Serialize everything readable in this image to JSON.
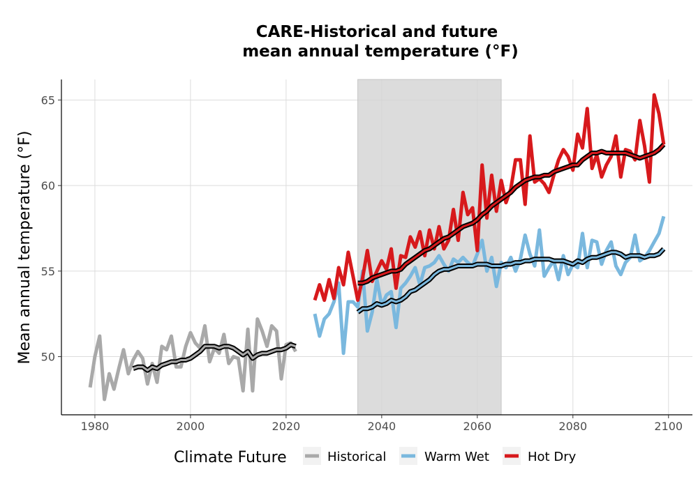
{
  "chart_data": {
    "type": "line",
    "title_line1": "CARE-Historical and future",
    "title_line2": "mean annual temperature (°F)",
    "xlabel": "",
    "ylabel": "Mean annual temperature (°F)",
    "xlim": [
      1973,
      2105
    ],
    "ylim": [
      46.6,
      66.2
    ],
    "x_ticks": [
      "1980",
      "2000",
      "2020",
      "2040",
      "2060",
      "2080",
      "2100"
    ],
    "y_ticks": [
      "50",
      "55",
      "60",
      "65"
    ],
    "grid": true,
    "shaded_period": [
      2035,
      2065
    ],
    "legend": {
      "title": "Climate Future",
      "position": "bottom",
      "entries": [
        {
          "label": "Historical",
          "color": "#a9a9a9"
        },
        {
          "label": "Warm Wet",
          "color": "#7ab8de"
        },
        {
          "label": "Hot Dry",
          "color": "#d7191c"
        }
      ]
    },
    "series": [
      {
        "name": "Historical",
        "color": "#a9a9a9",
        "x": [
          1979,
          1980,
          1981,
          1982,
          1983,
          1984,
          1985,
          1986,
          1987,
          1988,
          1989,
          1990,
          1991,
          1992,
          1993,
          1994,
          1995,
          1996,
          1997,
          1998,
          1999,
          2000,
          2001,
          2002,
          2003,
          2004,
          2005,
          2006,
          2007,
          2008,
          2009,
          2010,
          2011,
          2012,
          2013,
          2014,
          2015,
          2016,
          2017,
          2018,
          2019,
          2020,
          2021,
          2022
        ],
        "values": [
          48.2,
          50.0,
          51.2,
          47.5,
          49.0,
          48.1,
          49.3,
          50.4,
          49.0,
          49.8,
          50.3,
          49.9,
          48.4,
          49.6,
          48.5,
          50.6,
          50.4,
          51.2,
          49.4,
          49.4,
          50.6,
          51.4,
          50.8,
          50.5,
          51.8,
          49.7,
          50.5,
          50.2,
          51.3,
          49.6,
          50.0,
          49.9,
          48.0,
          51.6,
          48.0,
          52.2,
          51.5,
          50.6,
          51.8,
          51.5,
          48.7,
          50.7,
          50.8,
          50.3
        ]
      },
      {
        "name": "Historical (smoothed)",
        "color": "#a9a9a9",
        "smoothed": true,
        "x": [
          1988,
          1989,
          1990,
          1991,
          1992,
          1993,
          1994,
          1995,
          1996,
          1997,
          1998,
          1999,
          2000,
          2001,
          2002,
          2003,
          2004,
          2005,
          2006,
          2007,
          2008,
          2009,
          2010,
          2011,
          2012,
          2013,
          2014,
          2015,
          2016,
          2017,
          2018,
          2019,
          2020,
          2021,
          2022
        ],
        "values": [
          49.3,
          49.4,
          49.4,
          49.2,
          49.4,
          49.3,
          49.5,
          49.6,
          49.7,
          49.7,
          49.8,
          49.8,
          49.9,
          50.1,
          50.3,
          50.6,
          50.6,
          50.6,
          50.5,
          50.6,
          50.6,
          50.5,
          50.3,
          50.1,
          50.3,
          49.9,
          50.1,
          50.2,
          50.2,
          50.3,
          50.4,
          50.4,
          50.5,
          50.7,
          50.6
        ]
      },
      {
        "name": "Warm Wet",
        "color": "#7ab8de",
        "x": [
          2026,
          2027,
          2028,
          2029,
          2030,
          2031,
          2032,
          2033,
          2034,
          2035,
          2036,
          2037,
          2038,
          2039,
          2040,
          2041,
          2042,
          2043,
          2044,
          2045,
          2046,
          2047,
          2048,
          2049,
          2050,
          2051,
          2052,
          2053,
          2054,
          2055,
          2056,
          2057,
          2058,
          2059,
          2060,
          2061,
          2062,
          2063,
          2064,
          2065,
          2066,
          2067,
          2068,
          2069,
          2070,
          2071,
          2072,
          2073,
          2074,
          2075,
          2076,
          2077,
          2078,
          2079,
          2080,
          2081,
          2082,
          2083,
          2084,
          2085,
          2086,
          2087,
          2088,
          2089,
          2090,
          2091,
          2092,
          2093,
          2094,
          2095,
          2096,
          2097,
          2098,
          2099
        ],
        "values": [
          52.5,
          51.2,
          52.2,
          52.5,
          53.2,
          54.3,
          50.2,
          53.2,
          53.2,
          52.9,
          55.0,
          51.5,
          52.6,
          54.5,
          53.0,
          53.6,
          53.8,
          51.7,
          54.0,
          54.3,
          54.7,
          55.2,
          54.2,
          55.2,
          55.3,
          55.5,
          55.9,
          55.4,
          55.0,
          55.7,
          55.5,
          55.8,
          55.5,
          55.3,
          56.0,
          56.8,
          55.0,
          55.8,
          54.1,
          55.5,
          55.2,
          55.8,
          55.0,
          55.7,
          57.1,
          56.0,
          55.3,
          57.4,
          54.7,
          55.2,
          55.6,
          54.5,
          55.9,
          54.8,
          55.4,
          55.2,
          57.2,
          55.2,
          56.8,
          56.7,
          55.4,
          56.2,
          56.7,
          55.3,
          54.8,
          55.5,
          55.8,
          57.1,
          55.6,
          55.8,
          56.2,
          56.7,
          57.2,
          58.2
        ]
      },
      {
        "name": "Warm Wet (smoothed)",
        "color": "#7ab8de",
        "smoothed": true,
        "x": [
          2035,
          2036,
          2037,
          2038,
          2039,
          2040,
          2041,
          2042,
          2043,
          2044,
          2045,
          2046,
          2047,
          2048,
          2049,
          2050,
          2051,
          2052,
          2053,
          2054,
          2055,
          2056,
          2057,
          2058,
          2059,
          2060,
          2061,
          2062,
          2063,
          2064,
          2065,
          2066,
          2067,
          2068,
          2069,
          2070,
          2071,
          2072,
          2073,
          2074,
          2075,
          2076,
          2077,
          2078,
          2079,
          2080,
          2081,
          2082,
          2083,
          2084,
          2085,
          2086,
          2087,
          2088,
          2089,
          2090,
          2091,
          2092,
          2093,
          2094,
          2095,
          2096,
          2097,
          2098,
          2099
        ],
        "values": [
          52.6,
          52.8,
          52.8,
          52.9,
          53.1,
          53.0,
          53.1,
          53.3,
          53.2,
          53.3,
          53.5,
          53.8,
          53.9,
          54.1,
          54.3,
          54.5,
          54.8,
          55.0,
          55.1,
          55.1,
          55.2,
          55.3,
          55.3,
          55.3,
          55.3,
          55.4,
          55.4,
          55.4,
          55.3,
          55.3,
          55.3,
          55.4,
          55.4,
          55.5,
          55.5,
          55.6,
          55.6,
          55.7,
          55.7,
          55.7,
          55.7,
          55.6,
          55.6,
          55.6,
          55.5,
          55.4,
          55.6,
          55.5,
          55.7,
          55.8,
          55.8,
          55.9,
          56.0,
          56.1,
          56.1,
          56.0,
          55.8,
          55.9,
          55.9,
          55.9,
          55.8,
          55.9,
          55.9,
          56.0,
          56.3
        ]
      },
      {
        "name": "Hot Dry",
        "color": "#d7191c",
        "x": [
          2026,
          2027,
          2028,
          2029,
          2030,
          2031,
          2032,
          2033,
          2034,
          2035,
          2036,
          2037,
          2038,
          2039,
          2040,
          2041,
          2042,
          2043,
          2044,
          2045,
          2046,
          2047,
          2048,
          2049,
          2050,
          2051,
          2052,
          2053,
          2054,
          2055,
          2056,
          2057,
          2058,
          2059,
          2060,
          2061,
          2062,
          2063,
          2064,
          2065,
          2066,
          2067,
          2068,
          2069,
          2070,
          2071,
          2072,
          2073,
          2074,
          2075,
          2076,
          2077,
          2078,
          2079,
          2080,
          2081,
          2082,
          2083,
          2084,
          2085,
          2086,
          2087,
          2088,
          2089,
          2090,
          2091,
          2092,
          2093,
          2094,
          2095,
          2096,
          2097,
          2098,
          2099
        ],
        "values": [
          53.3,
          54.2,
          53.3,
          54.5,
          53.4,
          55.2,
          54.2,
          56.1,
          54.7,
          53.3,
          54.6,
          56.2,
          54.4,
          55.0,
          55.6,
          55.1,
          56.3,
          54.0,
          55.9,
          55.8,
          57.0,
          56.4,
          57.3,
          55.9,
          57.4,
          56.3,
          57.6,
          56.3,
          56.8,
          58.6,
          56.8,
          59.6,
          58.3,
          58.7,
          56.2,
          61.2,
          58.1,
          60.6,
          58.5,
          60.3,
          59.0,
          59.8,
          61.5,
          61.5,
          58.9,
          62.9,
          60.2,
          60.4,
          60.1,
          59.6,
          60.6,
          61.5,
          62.1,
          61.7,
          60.9,
          63.0,
          62.2,
          64.5,
          61.0,
          61.8,
          60.5,
          61.2,
          61.7,
          62.9,
          60.5,
          62.1,
          62.0,
          61.5,
          63.8,
          62.3,
          60.2,
          65.3,
          64.2,
          62.4
        ]
      },
      {
        "name": "Hot Dry (smoothed)",
        "color": "#d7191c",
        "smoothed": true,
        "x": [
          2035,
          2036,
          2037,
          2038,
          2039,
          2040,
          2041,
          2042,
          2043,
          2044,
          2045,
          2046,
          2047,
          2048,
          2049,
          2050,
          2051,
          2052,
          2053,
          2054,
          2055,
          2056,
          2057,
          2058,
          2059,
          2060,
          2061,
          2062,
          2063,
          2064,
          2065,
          2066,
          2067,
          2068,
          2069,
          2070,
          2071,
          2072,
          2073,
          2074,
          2075,
          2076,
          2077,
          2078,
          2079,
          2080,
          2081,
          2082,
          2083,
          2084,
          2085,
          2086,
          2087,
          2088,
          2089,
          2090,
          2091,
          2092,
          2093,
          2094,
          2095,
          2096,
          2097,
          2098,
          2099
        ],
        "values": [
          54.3,
          54.3,
          54.4,
          54.6,
          54.7,
          54.8,
          54.9,
          55.0,
          55.0,
          55.1,
          55.4,
          55.6,
          55.8,
          56.0,
          56.2,
          56.3,
          56.5,
          56.7,
          56.9,
          57.0,
          57.2,
          57.4,
          57.6,
          57.7,
          57.8,
          58.0,
          58.3,
          58.5,
          58.8,
          59.0,
          59.2,
          59.4,
          59.6,
          59.9,
          60.1,
          60.3,
          60.4,
          60.5,
          60.5,
          60.6,
          60.6,
          60.8,
          60.9,
          61.0,
          61.1,
          61.2,
          61.2,
          61.5,
          61.7,
          61.9,
          61.9,
          62.0,
          61.9,
          61.9,
          61.9,
          61.9,
          61.9,
          61.8,
          61.7,
          61.6,
          61.7,
          61.8,
          61.9,
          62.1,
          62.4
        ]
      }
    ]
  }
}
